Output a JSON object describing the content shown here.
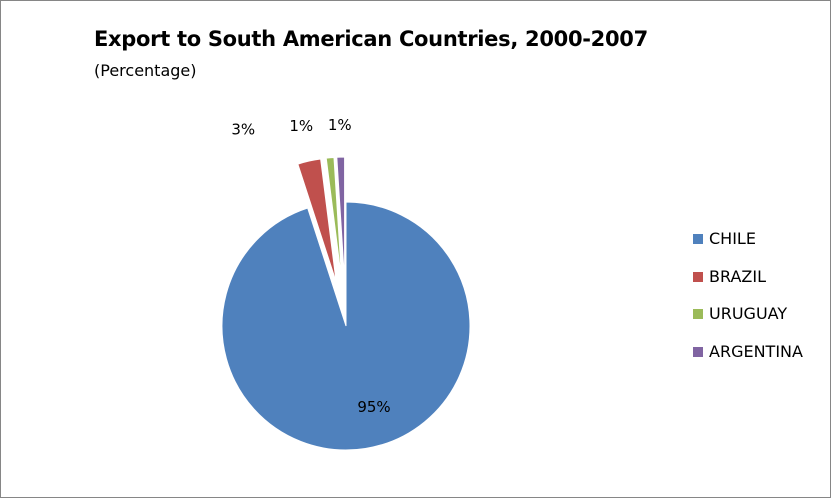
{
  "chart_data": {
    "type": "pie",
    "title": "Export to South American Countries, 2000-2007",
    "subtitle": "(Percentage)",
    "categories": [
      "CHILE",
      "BRAZIL",
      "URUGUAY",
      "ARGENTINA"
    ],
    "values": [
      95,
      3,
      1,
      1
    ],
    "data_labels": [
      "95%",
      "3%",
      "1%",
      "1%"
    ],
    "colors": [
      "#4F81BD",
      "#C0504D",
      "#9BBB59",
      "#8064A2"
    ],
    "exploded": [
      false,
      true,
      true,
      true
    ],
    "start_angle_deg": 0,
    "direction": "clockwise",
    "legend_position": "right"
  }
}
